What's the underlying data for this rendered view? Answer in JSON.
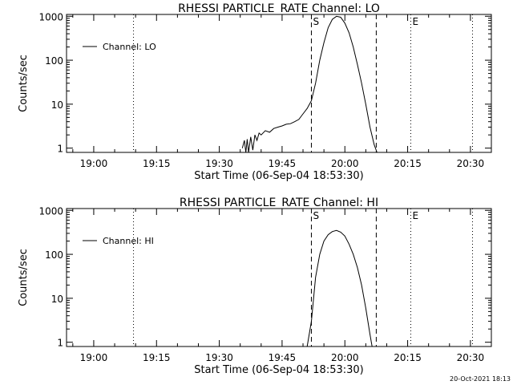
{
  "footer": {
    "timestamp": "20-Oct-2021 18:13"
  },
  "chart_data": [
    {
      "type": "line",
      "title": "RHESSI PARTICLE_RATE Channel: LO",
      "xlabel": "Start Time (06-Sep-04 18:53:30)",
      "ylabel": "Counts/sec",
      "x_ticks": [
        "19:00",
        "19:15",
        "19:30",
        "19:45",
        "20:00",
        "20:15",
        "20:30"
      ],
      "y_ticks": [
        "1",
        "10",
        "100",
        "1000"
      ],
      "y_scale": "log",
      "xlim": [
        "18:53:30",
        "20:35:00"
      ],
      "ylim": [
        0.8,
        1100
      ],
      "legend": {
        "label": "Channel: LO",
        "placement": "top-left"
      },
      "markers": [
        {
          "time": "19:09:30",
          "style": "dotted",
          "label": ""
        },
        {
          "time": "19:52:00",
          "style": "dashed",
          "label": "S"
        },
        {
          "time": "20:07:30",
          "style": "dashed",
          "label": ""
        },
        {
          "time": "20:15:45",
          "style": "dotted",
          "label": "E"
        },
        {
          "time": "20:30:30",
          "style": "dotted",
          "label": ""
        }
      ],
      "series": [
        {
          "name": "Channel: LO",
          "points": [
            [
              "19:35:30",
              1
            ],
            [
              "19:36:00",
              1.5
            ],
            [
              "19:36:20",
              0.8
            ],
            [
              "19:36:40",
              1.6
            ],
            [
              "19:37:00",
              0.8
            ],
            [
              "19:37:30",
              1.8
            ],
            [
              "19:38:00",
              0.9
            ],
            [
              "19:38:30",
              2.0
            ],
            [
              "19:39:00",
              1.5
            ],
            [
              "19:39:30",
              2.2
            ],
            [
              "19:40:00",
              2.0
            ],
            [
              "19:41:00",
              2.5
            ],
            [
              "19:42:00",
              2.3
            ],
            [
              "19:43:00",
              2.8
            ],
            [
              "19:44:00",
              3.0
            ],
            [
              "19:45:00",
              3.2
            ],
            [
              "19:46:00",
              3.5
            ],
            [
              "19:47:00",
              3.6
            ],
            [
              "19:48:00",
              4.0
            ],
            [
              "19:49:00",
              4.5
            ],
            [
              "19:50:00",
              6.0
            ],
            [
              "19:51:00",
              8.0
            ],
            [
              "19:52:00",
              12
            ],
            [
              "19:53:00",
              30
            ],
            [
              "19:54:00",
              100
            ],
            [
              "19:55:00",
              250
            ],
            [
              "19:56:00",
              550
            ],
            [
              "19:57:00",
              850
            ],
            [
              "19:58:00",
              1000
            ],
            [
              "19:59:00",
              950
            ],
            [
              "20:00:00",
              700
            ],
            [
              "20:01:00",
              420
            ],
            [
              "20:02:00",
              200
            ],
            [
              "20:03:00",
              80
            ],
            [
              "20:04:00",
              30
            ],
            [
              "20:05:00",
              10
            ],
            [
              "20:06:00",
              3
            ],
            [
              "20:07:00",
              1.2
            ],
            [
              "20:07:40",
              0.8
            ]
          ]
        }
      ]
    },
    {
      "type": "line",
      "title": "RHESSI PARTICLE_RATE Channel: HI",
      "xlabel": "Start Time (06-Sep-04 18:53:30)",
      "ylabel": "Counts/sec",
      "x_ticks": [
        "19:00",
        "19:15",
        "19:30",
        "19:45",
        "20:00",
        "20:15",
        "20:30"
      ],
      "y_ticks": [
        "1",
        "10",
        "100",
        "1000"
      ],
      "y_scale": "log",
      "xlim": [
        "18:53:30",
        "20:35:00"
      ],
      "ylim": [
        0.8,
        1100
      ],
      "legend": {
        "label": "Channel: HI",
        "placement": "top-left"
      },
      "markers": [
        {
          "time": "19:09:30",
          "style": "dotted",
          "label": ""
        },
        {
          "time": "19:52:00",
          "style": "dashed",
          "label": "S"
        },
        {
          "time": "20:07:30",
          "style": "dashed",
          "label": ""
        },
        {
          "time": "20:15:45",
          "style": "dotted",
          "label": "E"
        },
        {
          "time": "20:30:30",
          "style": "dotted",
          "label": ""
        }
      ],
      "series": [
        {
          "name": "Channel: HI",
          "points": [
            [
              "19:51:00",
              0.8
            ],
            [
              "19:52:00",
              3
            ],
            [
              "19:53:00",
              30
            ],
            [
              "19:54:00",
              100
            ],
            [
              "19:55:00",
              200
            ],
            [
              "19:56:00",
              280
            ],
            [
              "19:57:00",
              330
            ],
            [
              "19:58:00",
              350
            ],
            [
              "19:59:00",
              320
            ],
            [
              "20:00:00",
              260
            ],
            [
              "20:01:00",
              170
            ],
            [
              "20:02:00",
              100
            ],
            [
              "20:03:00",
              50
            ],
            [
              "20:04:00",
              20
            ],
            [
              "20:05:00",
              6
            ],
            [
              "20:06:00",
              1.5
            ],
            [
              "20:06:30",
              0.8
            ]
          ]
        }
      ]
    }
  ]
}
